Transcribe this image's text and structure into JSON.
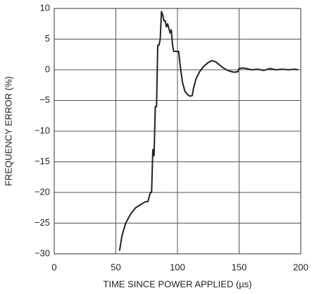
{
  "chart_data": {
    "type": "line",
    "xlabel": "TIME SINCE POWER APPLIED (µs)",
    "ylabel": "FREQUENCY ERROR (%)",
    "x": [
      53,
      55,
      58,
      62,
      66,
      70,
      74,
      76,
      78,
      79,
      80,
      81,
      82,
      83,
      84,
      85,
      86,
      87,
      88,
      89,
      90,
      91,
      92,
      94,
      95,
      96,
      97,
      100,
      101,
      102,
      103,
      104,
      106,
      108,
      110,
      112,
      113,
      115,
      118,
      121,
      125,
      128,
      131,
      134,
      138,
      142,
      146,
      149,
      150,
      153,
      156,
      160,
      165,
      170,
      175,
      180,
      185,
      190,
      195,
      198
    ],
    "series": [
      {
        "color": "#222222",
        "values": [
          -29.5,
          -27,
          -25,
          -23.5,
          -22.5,
          -22,
          -21.5,
          -21.5,
          -20,
          -20,
          -13,
          -14,
          -6,
          -6,
          4,
          4,
          5,
          9.5,
          9,
          8,
          8,
          7,
          7.5,
          6,
          6.5,
          4,
          3,
          3,
          3,
          1,
          -0.5,
          -2,
          -3.5,
          -4,
          -4.3,
          -4.2,
          -3,
          -1.5,
          -0.3,
          0.5,
          1.2,
          1.5,
          1.3,
          0.8,
          0.2,
          -0.2,
          -0.4,
          -0.3,
          0.2,
          0.3,
          0.2,
          0,
          0.1,
          -0.1,
          0.2,
          0,
          0.1,
          0,
          0.1,
          0
        ]
      }
    ],
    "xlim": [
      0,
      200
    ],
    "xticks": [
      0,
      50,
      100,
      150,
      200
    ],
    "ylim": [
      -30,
      10
    ],
    "yticks": [
      {
        "value": -30,
        "label": "−30"
      },
      {
        "value": -25,
        "label": "−25"
      },
      {
        "value": -20,
        "label": "−20"
      },
      {
        "value": -15,
        "label": "−15"
      },
      {
        "value": -10,
        "label": "−10"
      },
      {
        "value": -5,
        "label": "−5"
      },
      0,
      5,
      10
    ],
    "grid": true
  }
}
